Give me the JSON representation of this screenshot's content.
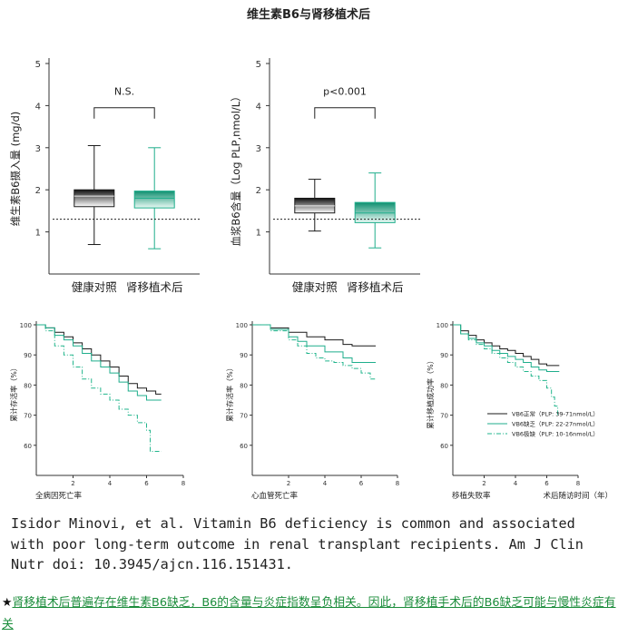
{
  "figure_title": "维生素B6与肾移植术后",
  "citation": "Isidor Minovi, et al. Vitamin B6 deficiency is common and associated\nwith poor long-term outcome in renal transplant recipients. Am J Clin\nNutr doi: 10.3945/ajcn.116.151431.",
  "summary": {
    "star": "★",
    "text": "肾移植术后普遍存在维生素B6缺乏，B6的含量与炎症指数呈负相关。因此，肾移植手术后的B6缺乏可能与慢性炎症有关"
  },
  "colors": {
    "dark": "#1a1a1a",
    "green": "#1fae8c",
    "dash_green": "#22b58c",
    "axis": "#333333"
  },
  "chart_data": [
    {
      "type": "box",
      "title": "",
      "ylabel": "维生素B6摄入量 (mg/d)",
      "ylim": [
        0,
        5
      ],
      "yticks": [
        1,
        2,
        3,
        4,
        5
      ],
      "categories": [
        "健康对照",
        "肾移植术后"
      ],
      "boxes": [
        {
          "category": "健康对照",
          "min": 0.7,
          "q1": 1.6,
          "median": 1.85,
          "q3": 2.0,
          "max": 3.05,
          "color": "#1a1a1a"
        },
        {
          "category": "肾移植术后",
          "min": 0.6,
          "q1": 1.57,
          "median": 1.8,
          "q3": 1.97,
          "max": 3.0,
          "color": "#1fae8c"
        }
      ],
      "reference_line": 1.3,
      "annotation": "N.S."
    },
    {
      "type": "box",
      "title": "",
      "ylabel": "血浆B6含量（Log PLP,nmol/L）",
      "ylim": [
        0,
        5
      ],
      "yticks": [
        1,
        2,
        3,
        4,
        5
      ],
      "categories": [
        "健康对照",
        "肾移植术后"
      ],
      "boxes": [
        {
          "category": "健康对照",
          "min": 1.02,
          "q1": 1.45,
          "median": 1.62,
          "q3": 1.8,
          "max": 2.25,
          "color": "#1a1a1a"
        },
        {
          "category": "肾移植术后",
          "min": 0.62,
          "q1": 1.22,
          "median": 1.45,
          "q3": 1.7,
          "max": 2.4,
          "color": "#1fae8c"
        }
      ],
      "reference_line": 1.3,
      "annotation": "p<0.001"
    },
    {
      "type": "line",
      "xlabel": "全病因死亡率",
      "ylabel": "累计存活率（%）",
      "xlim": [
        0,
        8
      ],
      "ylim": [
        50,
        100
      ],
      "xticks": [
        2,
        4,
        6,
        8
      ],
      "yticks": [
        60,
        70,
        80,
        90,
        100
      ],
      "series": [
        {
          "style": "black",
          "x": [
            0,
            0.5,
            1,
            1.5,
            2,
            2.5,
            3,
            3.5,
            4,
            4.5,
            5,
            5.5,
            6,
            6.5,
            6.8
          ],
          "y": [
            100,
            99,
            97.5,
            96,
            94,
            92,
            90,
            88,
            86,
            83,
            80.5,
            79,
            78,
            77,
            77
          ]
        },
        {
          "style": "green",
          "x": [
            0,
            0.5,
            1,
            1.5,
            2,
            2.5,
            3,
            3.5,
            4,
            4.5,
            5,
            5.5,
            6,
            6.5,
            6.8
          ],
          "y": [
            100,
            99,
            96.5,
            95,
            93,
            90.5,
            88,
            86,
            84,
            81,
            78,
            76.5,
            75,
            75,
            75
          ]
        },
        {
          "style": "dashgreen",
          "x": [
            0,
            0.5,
            1,
            1.5,
            2,
            2.5,
            3,
            3.5,
            4,
            4.5,
            5,
            5.5,
            6,
            6.2,
            6.5,
            6.8
          ],
          "y": [
            100,
            98,
            93,
            90,
            86,
            82,
            79,
            77,
            75,
            72,
            70,
            67.5,
            65,
            58,
            58,
            58
          ]
        }
      ]
    },
    {
      "type": "line",
      "xlabel": "心血管死亡率",
      "ylabel": "累计存活率（%）",
      "xlim": [
        0,
        8
      ],
      "ylim": [
        50,
        100
      ],
      "xticks": [
        2,
        4,
        6,
        8
      ],
      "yticks": [
        60,
        70,
        80,
        90,
        100
      ],
      "series": [
        {
          "style": "black",
          "x": [
            0,
            1,
            2,
            3,
            4,
            5,
            5.5,
            6,
            6.5,
            6.8
          ],
          "y": [
            100,
            99,
            97.5,
            96,
            95,
            93.5,
            93,
            93,
            93,
            93
          ]
        },
        {
          "style": "green",
          "x": [
            0,
            1,
            2,
            2.5,
            3,
            4,
            5,
            5.5,
            6,
            6.8
          ],
          "y": [
            100,
            98.5,
            96,
            94.5,
            93,
            91,
            89,
            87.5,
            87.5,
            87.5
          ]
        },
        {
          "style": "dashgreen",
          "x": [
            0,
            1,
            2,
            2.5,
            3,
            3.5,
            4,
            4.5,
            5,
            5.5,
            6,
            6.5,
            6.8
          ],
          "y": [
            100,
            98,
            95,
            93,
            90.5,
            89,
            88,
            87.5,
            86.5,
            85.5,
            84,
            82,
            82
          ]
        }
      ]
    },
    {
      "type": "line",
      "xlabel": "移植失败率",
      "x_secondary_label": "术后随访时间（年）",
      "ylabel": "累计移植成功率（%）",
      "xlim": [
        0,
        8
      ],
      "ylim": [
        50,
        100
      ],
      "xticks": [
        2,
        4,
        6,
        8
      ],
      "yticks": [
        60,
        70,
        80,
        90,
        100
      ],
      "legend_position": "bottom-right",
      "series": [
        {
          "name": "VB6正常（PLP: 39-71nmol/L）",
          "style": "black",
          "x": [
            0,
            0.5,
            1,
            1.5,
            2,
            2.5,
            3,
            3.5,
            4,
            4.5,
            5,
            5.5,
            6,
            6.8
          ],
          "y": [
            100,
            98,
            96.5,
            95,
            94,
            93,
            92,
            91.5,
            90.5,
            89.5,
            88.5,
            87,
            86.5,
            86.5
          ]
        },
        {
          "name": "VB6缺乏（PLP: 22-27nmol/L）",
          "style": "green",
          "x": [
            0,
            0.5,
            1,
            1.5,
            2,
            2.5,
            3,
            3.5,
            4,
            4.5,
            5,
            5.5,
            6,
            6.8
          ],
          "y": [
            100,
            97,
            95.5,
            94,
            93,
            91.5,
            90.5,
            89.5,
            88.5,
            87.5,
            86,
            85,
            84.5,
            84.5
          ]
        },
        {
          "name": "VB6极缺（PLP: 10-16nmol/L）",
          "style": "dashgreen",
          "x": [
            0,
            0.5,
            1,
            1.5,
            2,
            2.5,
            3,
            3.5,
            4,
            4.5,
            5,
            5.5,
            6,
            6.3,
            6.5,
            6.7
          ],
          "y": [
            100,
            97,
            95,
            93.5,
            92,
            90.5,
            89,
            87.5,
            86,
            84.5,
            83,
            81.5,
            79,
            76,
            73,
            70
          ]
        }
      ]
    }
  ]
}
